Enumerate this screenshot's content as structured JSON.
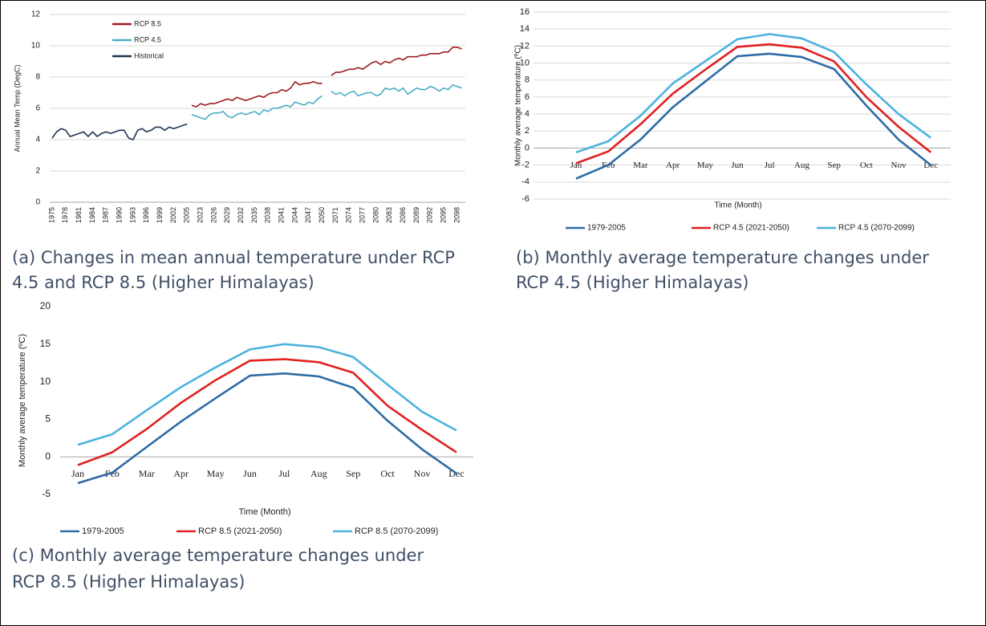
{
  "chart_data": [
    {
      "type": "line",
      "caption": [
        "(a) Changes in mean annual temperature under RCP",
        "4.5 and RCP 8.5 (Higher Himalayas)"
      ],
      "y_label": "Annual Mean Temp (DegC)",
      "categories": [
        "1975",
        null,
        null,
        "1978",
        null,
        null,
        "1981",
        null,
        null,
        "1984",
        null,
        null,
        "1987",
        null,
        null,
        "1990",
        null,
        null,
        "1993",
        null,
        null,
        "1996",
        null,
        null,
        "1999",
        null,
        null,
        "2002",
        null,
        null,
        "2005",
        null,
        null,
        "2023",
        null,
        null,
        "2026",
        null,
        null,
        "2029",
        null,
        null,
        "2032",
        null,
        null,
        "2035",
        null,
        null,
        "2038",
        null,
        null,
        "2041",
        null,
        null,
        "2044",
        null,
        null,
        "2047",
        null,
        null,
        "2050",
        null,
        null,
        "2071",
        null,
        null,
        "2074",
        null,
        null,
        "2077",
        null,
        null,
        "2080",
        null,
        null,
        "2083",
        null,
        null,
        "2086",
        null,
        null,
        "2089",
        null,
        null,
        "2092",
        null,
        null,
        "2095",
        null,
        null,
        "2098",
        null
      ],
      "series": [
        {
          "name": "RCP 8.5",
          "color": "#9b1c1f",
          "values": [
            null,
            null,
            null,
            null,
            null,
            null,
            null,
            null,
            null,
            null,
            null,
            null,
            null,
            null,
            null,
            null,
            null,
            null,
            null,
            null,
            null,
            null,
            null,
            null,
            null,
            null,
            null,
            null,
            null,
            null,
            null,
            6.2,
            6.1,
            6.3,
            6.2,
            6.3,
            6.3,
            6.4,
            6.5,
            6.6,
            6.5,
            6.7,
            6.6,
            6.5,
            6.6,
            6.7,
            6.8,
            6.7,
            6.9,
            7.0,
            7.0,
            7.2,
            7.1,
            7.3,
            7.7,
            7.5,
            7.6,
            7.6,
            7.7,
            7.6,
            7.6,
            null,
            8.1,
            8.3,
            8.3,
            8.4,
            8.5,
            8.5,
            8.6,
            8.5,
            8.7,
            8.9,
            9.0,
            8.8,
            9.0,
            8.9,
            9.1,
            9.2,
            9.1,
            9.3,
            9.3,
            9.3,
            9.4,
            9.4,
            9.5,
            9.5,
            9.5,
            9.6,
            9.6,
            9.9,
            9.9,
            9.8
          ]
        },
        {
          "name": "RCP 4.5",
          "color": "#4bacc6",
          "values": [
            null,
            null,
            null,
            null,
            null,
            null,
            null,
            null,
            null,
            null,
            null,
            null,
            null,
            null,
            null,
            null,
            null,
            null,
            null,
            null,
            null,
            null,
            null,
            null,
            null,
            null,
            null,
            null,
            null,
            null,
            null,
            5.6,
            5.5,
            5.4,
            5.3,
            5.6,
            5.7,
            5.7,
            5.8,
            5.5,
            5.4,
            5.6,
            5.7,
            5.6,
            5.7,
            5.8,
            5.6,
            5.9,
            5.8,
            6.0,
            6.0,
            6.1,
            6.2,
            6.1,
            6.4,
            6.3,
            6.2,
            6.4,
            6.3,
            6.6,
            6.8,
            null,
            7.1,
            6.9,
            7.0,
            6.8,
            7.0,
            7.1,
            6.8,
            6.9,
            7.0,
            7.0,
            6.8,
            6.9,
            7.3,
            7.2,
            7.3,
            7.1,
            7.3,
            6.9,
            7.1,
            7.3,
            7.2,
            7.2,
            7.4,
            7.3,
            7.1,
            7.3,
            7.2,
            7.5,
            7.4,
            7.3
          ]
        },
        {
          "name": "Historical",
          "color": "#1f3350",
          "values": [
            4.1,
            4.5,
            4.7,
            4.6,
            4.2,
            4.3,
            4.4,
            4.5,
            4.2,
            4.5,
            4.2,
            4.4,
            4.5,
            4.4,
            4.5,
            4.6,
            4.6,
            4.1,
            4.0,
            4.6,
            4.7,
            4.5,
            4.6,
            4.8,
            4.8,
            4.6,
            4.8,
            4.7,
            4.8,
            4.9,
            5.0,
            null,
            null,
            null,
            null,
            null,
            null,
            null,
            null,
            null,
            null,
            null,
            null,
            null,
            null,
            null,
            null,
            null,
            null,
            null,
            null,
            null,
            null,
            null,
            null,
            null,
            null,
            null,
            null,
            null,
            null,
            null,
            null,
            null,
            null,
            null,
            null,
            null,
            null,
            null,
            null,
            null,
            null,
            null,
            null,
            null,
            null,
            null,
            null,
            null,
            null,
            null,
            null,
            null,
            null,
            null,
            null,
            null,
            null,
            null,
            null,
            null
          ]
        }
      ],
      "ylim": [
        0,
        12
      ],
      "yticks": [
        0,
        2,
        4,
        6,
        8,
        10,
        12
      ],
      "grid": true,
      "legend": "top-left"
    },
    {
      "type": "line",
      "caption": [
        "(b) Monthly average temperature changes under",
        "RCP 4.5 (Higher Himalayas)"
      ],
      "y_label": "Monthly average temperature (ºC)",
      "x_label": "Time (Month)",
      "categories": [
        "Jan",
        "Feb",
        "Mar",
        "Apr",
        "May",
        "Jun",
        "Jul",
        "Aug",
        "Sep",
        "Oct",
        "Nov",
        "Dec"
      ],
      "series": [
        {
          "name": "1979-2005",
          "color": "#2e6ca4",
          "values": [
            -3.6,
            -2.0,
            1.0,
            4.8,
            7.8,
            10.8,
            11.1,
            10.7,
            9.3,
            5.0,
            1.0,
            -2.0
          ]
        },
        {
          "name": "RCP 4.5 (2021-2050)",
          "color": "#e02020",
          "values": [
            -1.8,
            -0.4,
            2.8,
            6.4,
            9.2,
            11.9,
            12.2,
            11.8,
            10.2,
            6.0,
            2.5,
            -0.5
          ]
        },
        {
          "name": "RCP 4.5 (2070-2099)",
          "color": "#4bb2de",
          "values": [
            -0.5,
            0.8,
            3.8,
            7.6,
            10.2,
            12.8,
            13.4,
            12.9,
            11.3,
            7.5,
            4.0,
            1.2
          ]
        }
      ],
      "ylim": [
        -6,
        16
      ],
      "yticks": [
        -6,
        -4,
        -2,
        0,
        2,
        4,
        6,
        8,
        10,
        12,
        14,
        16
      ],
      "grid": true,
      "legend": "bottom"
    },
    {
      "type": "line",
      "caption": [
        "(c) Monthly average temperature changes under",
        "RCP 8.5 (Higher Himalayas)"
      ],
      "y_label": "Monthly average temperature (ºC)",
      "x_label": "Time (Month)",
      "categories": [
        "Jan",
        "Feb",
        "Mar",
        "Apr",
        "May",
        "Jun",
        "Jul",
        "Aug",
        "Sep",
        "Oct",
        "Nov",
        "Dec"
      ],
      "series": [
        {
          "name": "1979-2005",
          "color": "#2e6ca4",
          "values": [
            -3.5,
            -2.1,
            1.3,
            4.7,
            7.8,
            10.8,
            11.1,
            10.7,
            9.2,
            4.8,
            1.0,
            -2.2
          ]
        },
        {
          "name": "RCP 8.5 (2021-2050)",
          "color": "#e02020",
          "values": [
            -1.1,
            0.6,
            3.7,
            7.2,
            10.2,
            12.8,
            13.0,
            12.6,
            11.2,
            6.8,
            3.6,
            0.6
          ]
        },
        {
          "name": "RCP 8.5 (2070-2099)",
          "color": "#4bb2de",
          "values": [
            1.6,
            3.0,
            6.2,
            9.3,
            11.9,
            14.3,
            15.0,
            14.6,
            13.3,
            9.6,
            6.0,
            3.5
          ]
        }
      ],
      "ylim": [
        -5,
        20
      ],
      "yticks": [
        -5,
        0,
        5,
        10,
        15,
        20
      ],
      "grid": false,
      "legend": "bottom"
    }
  ]
}
